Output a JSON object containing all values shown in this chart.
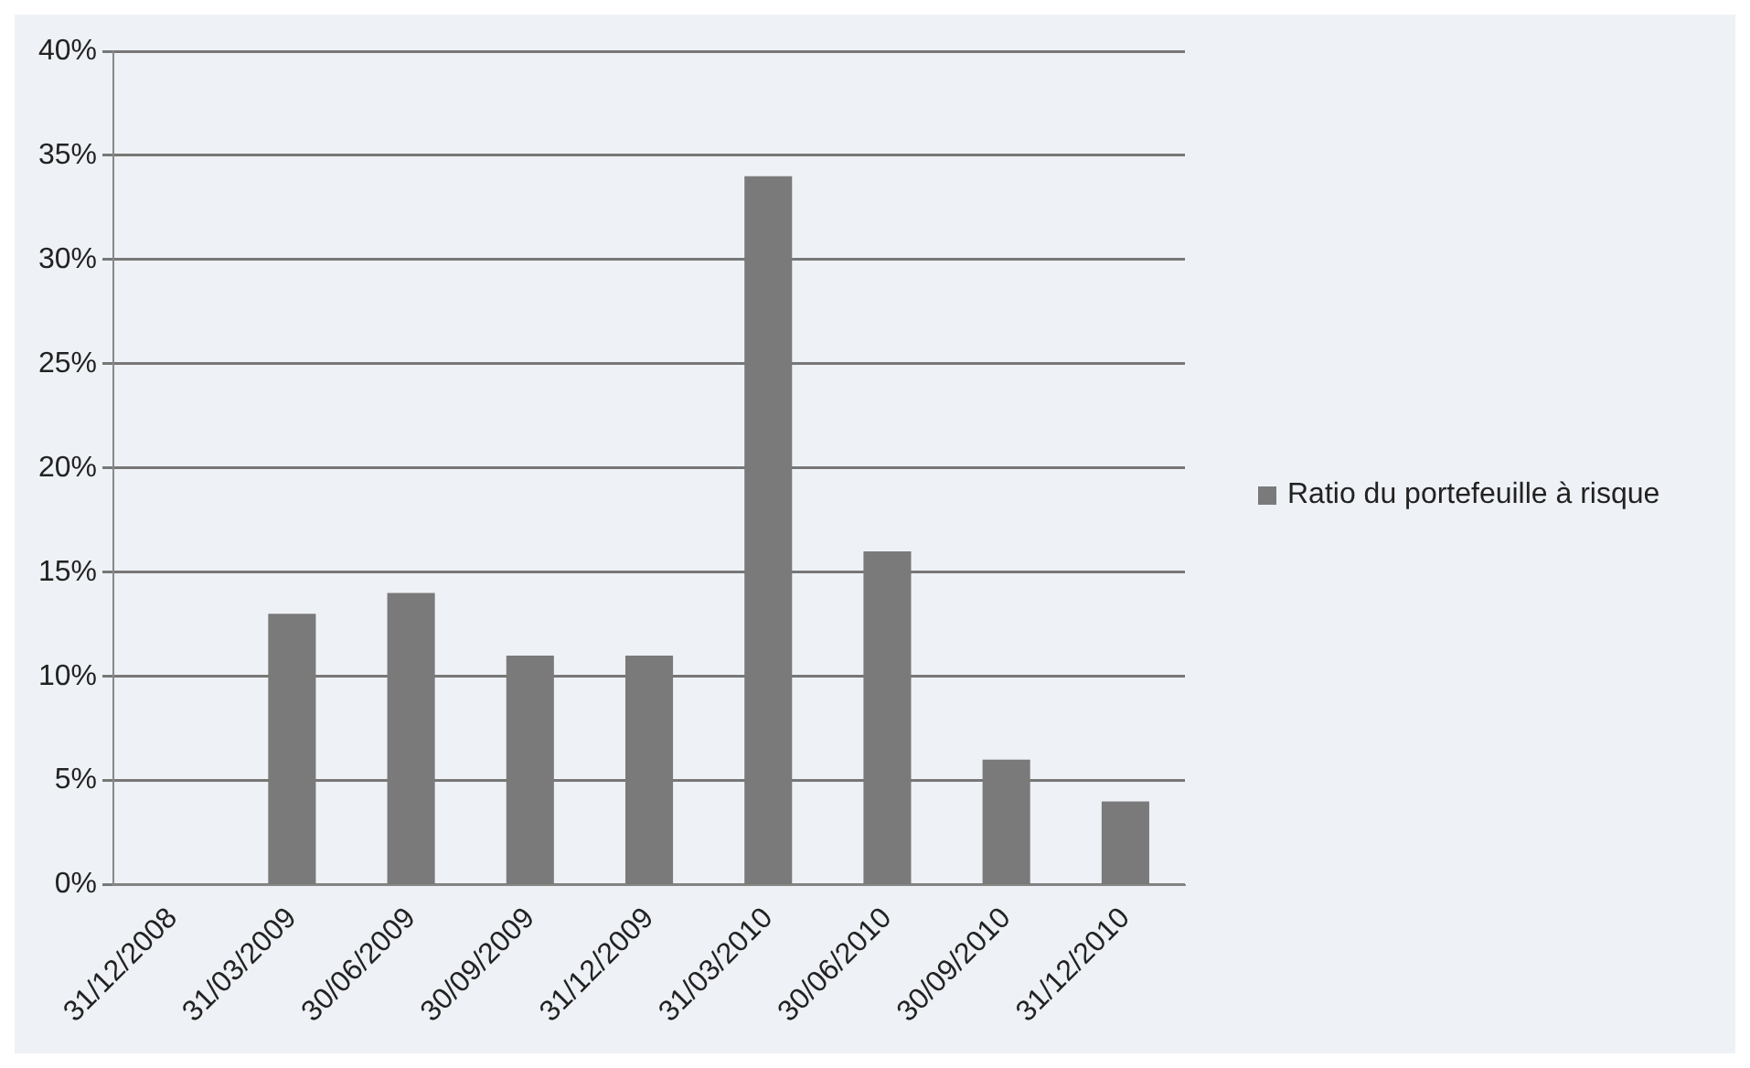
{
  "chart_data": {
    "type": "bar",
    "categories": [
      "31/12/2008",
      "31/03/2009",
      "30/06/2009",
      "30/09/2009",
      "31/12/2009",
      "31/03/2010",
      "30/06/2010",
      "30/09/2010",
      "31/12/2010"
    ],
    "series": [
      {
        "name": "Ratio du portefeuille à risque",
        "color": "#7a7a7a",
        "values": [
          null,
          13,
          14,
          11,
          11,
          34,
          16,
          6,
          4
        ]
      }
    ],
    "ylim": [
      0,
      40
    ],
    "yticks": [
      {
        "value": 0,
        "label": "0%"
      },
      {
        "value": 5,
        "label": "5%"
      },
      {
        "value": 10,
        "label": "10%"
      },
      {
        "value": 15,
        "label": "15%"
      },
      {
        "value": 20,
        "label": "20%"
      },
      {
        "value": 25,
        "label": "25%"
      },
      {
        "value": 30,
        "label": "30%"
      },
      {
        "value": 35,
        "label": "35%"
      },
      {
        "value": 40,
        "label": "40%"
      }
    ],
    "grid": "y",
    "legend": "right"
  }
}
